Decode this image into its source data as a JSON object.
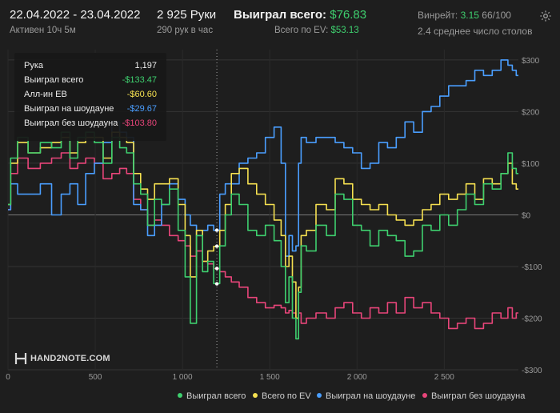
{
  "header": {
    "date_range": "22.04.2022 - 23.04.2022",
    "active_time": "Активен 10ч 5м",
    "hands": "2 925 Руки",
    "hands_per_hour": "290 рук в час",
    "won_total_label": "Выиграл всего:",
    "won_total_value": "$76.83",
    "ev_label": "Всего по EV:",
    "ev_value": "$53.13",
    "winrate_label": "Винрейт:",
    "winrate_value": "3.15",
    "winrate_unit": "66/100",
    "tables_avg": "2.4 среднее число столов",
    "settings_icon": "gear-icon"
  },
  "tooltip": {
    "rows": [
      {
        "label": "Рука",
        "value": "1,197",
        "color": "#ececec"
      },
      {
        "label": "Выиграл всего",
        "value": "-$133.47",
        "color": "#3ecf6e"
      },
      {
        "label": "Алл-ин ЕВ",
        "value": "-$60.60",
        "color": "#f5e050"
      },
      {
        "label": "Выиграл на шоудауне",
        "value": "-$29.67",
        "color": "#4a9eff"
      },
      {
        "label": "Выиграл без шоудауна",
        "value": "-$103.80",
        "color": "#e8457a"
      }
    ]
  },
  "logo": {
    "text": "HAND2NOTE.COM",
    "icon": "h2n-logo-icon"
  },
  "chart_data": {
    "type": "line",
    "x_ticks": [
      0,
      500,
      1000,
      1500,
      2000,
      2500
    ],
    "x_tick_labels": [
      "0",
      "500",
      "1 000",
      "1 500",
      "2 000",
      "2 500"
    ],
    "y_ticks": [
      300,
      200,
      100,
      0,
      -100,
      -200,
      -300
    ],
    "y_tick_labels": [
      "$300",
      "$200",
      "$100",
      "$0",
      "-$100",
      "-$200",
      "-$300"
    ],
    "xlim": [
      0,
      2925
    ],
    "ylim": [
      -300,
      320
    ],
    "grid": true,
    "legend_position": "bottom-right",
    "series": [
      {
        "name": "Выиграл всего",
        "color": "#3ecf6e",
        "x": [
          0,
          30,
          80,
          150,
          220,
          280,
          330,
          380,
          420,
          470,
          520,
          570,
          620,
          660,
          700,
          740,
          780,
          820,
          860,
          900,
          950,
          1000,
          1030,
          1060,
          1100,
          1130,
          1160,
          1197,
          1230,
          1260,
          1300,
          1350,
          1400,
          1450,
          1500,
          1550,
          1580,
          1600,
          1620,
          1640,
          1660,
          1670,
          1690,
          1730,
          1800,
          1850,
          1900,
          1950,
          2000,
          2050,
          2100,
          2150,
          2200,
          2250,
          2300,
          2350,
          2400,
          2450,
          2500,
          2550,
          2600,
          2650,
          2700,
          2750,
          2800,
          2850,
          2880,
          2900,
          2925
        ],
        "y": [
          20,
          110,
          150,
          120,
          140,
          130,
          160,
          110,
          150,
          160,
          140,
          100,
          150,
          130,
          120,
          60,
          40,
          -20,
          30,
          20,
          50,
          -30,
          -120,
          -210,
          -40,
          -110,
          -90,
          -133,
          -60,
          0,
          40,
          20,
          -30,
          -40,
          -20,
          -50,
          -100,
          -170,
          -120,
          -200,
          -240,
          -150,
          -60,
          -70,
          -20,
          -40,
          40,
          30,
          -20,
          -30,
          -60,
          -30,
          -40,
          -50,
          -80,
          -70,
          -20,
          -30,
          0,
          -20,
          10,
          40,
          20,
          60,
          50,
          80,
          120,
          90,
          80
        ]
      },
      {
        "name": "Всего по EV",
        "color": "#f5e050",
        "x": [
          0,
          30,
          80,
          150,
          220,
          280,
          330,
          380,
          420,
          470,
          520,
          570,
          620,
          660,
          700,
          740,
          780,
          820,
          860,
          900,
          950,
          1000,
          1030,
          1060,
          1100,
          1130,
          1160,
          1197,
          1230,
          1260,
          1300,
          1350,
          1400,
          1450,
          1500,
          1550,
          1580,
          1600,
          1620,
          1640,
          1660,
          1670,
          1690,
          1730,
          1800,
          1850,
          1900,
          1950,
          2000,
          2050,
          2100,
          2150,
          2200,
          2250,
          2300,
          2350,
          2400,
          2450,
          2500,
          2550,
          2600,
          2650,
          2700,
          2750,
          2800,
          2850,
          2880,
          2900,
          2925
        ],
        "y": [
          20,
          100,
          140,
          120,
          130,
          140,
          150,
          120,
          140,
          150,
          150,
          110,
          160,
          150,
          140,
          80,
          50,
          30,
          60,
          60,
          70,
          20,
          -40,
          -120,
          -30,
          -90,
          -70,
          -61,
          -30,
          20,
          80,
          90,
          60,
          40,
          20,
          -10,
          -40,
          -100,
          -80,
          -130,
          -200,
          -140,
          -40,
          -30,
          20,
          10,
          70,
          60,
          30,
          20,
          10,
          20,
          0,
          -10,
          -20,
          -10,
          10,
          20,
          40,
          30,
          40,
          60,
          30,
          70,
          60,
          80,
          100,
          60,
          50
        ]
      },
      {
        "name": "Выиграл на шоудауне",
        "color": "#4a9eff",
        "x": [
          0,
          30,
          80,
          150,
          220,
          280,
          330,
          380,
          420,
          470,
          520,
          570,
          620,
          660,
          700,
          740,
          780,
          820,
          860,
          900,
          950,
          1000,
          1030,
          1060,
          1100,
          1130,
          1160,
          1197,
          1230,
          1260,
          1300,
          1350,
          1400,
          1450,
          1500,
          1550,
          1580,
          1600,
          1620,
          1640,
          1660,
          1670,
          1690,
          1730,
          1800,
          1850,
          1900,
          1950,
          2000,
          2050,
          2100,
          2150,
          2200,
          2250,
          2300,
          2350,
          2400,
          2450,
          2500,
          2550,
          2600,
          2650,
          2700,
          2750,
          2800,
          2850,
          2880,
          2900,
          2925
        ],
        "y": [
          10,
          60,
          40,
          40,
          60,
          0,
          40,
          60,
          20,
          80,
          100,
          140,
          180,
          160,
          150,
          20,
          10,
          -40,
          -20,
          20,
          60,
          30,
          0,
          -20,
          -40,
          -30,
          -20,
          -30,
          40,
          60,
          60,
          100,
          110,
          120,
          150,
          170,
          100,
          -80,
          -40,
          -70,
          -60,
          100,
          150,
          140,
          150,
          150,
          140,
          130,
          120,
          90,
          100,
          140,
          130,
          150,
          180,
          160,
          200,
          210,
          230,
          250,
          250,
          260,
          280,
          270,
          280,
          300,
          290,
          280,
          270
        ]
      },
      {
        "name": "Выиграл без шоудауна",
        "color": "#e8457a",
        "x": [
          0,
          30,
          80,
          150,
          220,
          280,
          330,
          380,
          420,
          470,
          520,
          570,
          620,
          660,
          700,
          740,
          780,
          820,
          860,
          900,
          950,
          1000,
          1030,
          1060,
          1100,
          1130,
          1160,
          1197,
          1230,
          1260,
          1300,
          1350,
          1400,
          1450,
          1500,
          1550,
          1580,
          1600,
          1620,
          1640,
          1660,
          1670,
          1690,
          1730,
          1800,
          1850,
          1900,
          1950,
          2000,
          2050,
          2100,
          2150,
          2200,
          2250,
          2300,
          2350,
          2400,
          2450,
          2500,
          2550,
          2600,
          2650,
          2700,
          2750,
          2800,
          2850,
          2880,
          2900,
          2925
        ],
        "y": [
          10,
          80,
          110,
          90,
          100,
          110,
          120,
          90,
          100,
          110,
          100,
          70,
          80,
          90,
          80,
          30,
          10,
          -20,
          -10,
          -20,
          -40,
          -50,
          -60,
          -80,
          -70,
          -90,
          -95,
          -104,
          -110,
          -120,
          -130,
          -140,
          -160,
          -170,
          -180,
          -175,
          -180,
          -190,
          -185,
          -190,
          -200,
          -190,
          -210,
          -200,
          -190,
          -200,
          -180,
          -170,
          -190,
          -200,
          -180,
          -190,
          -170,
          -190,
          -160,
          -180,
          -170,
          -190,
          -200,
          -220,
          -210,
          -200,
          -220,
          -210,
          -190,
          -200,
          -180,
          -200,
          -190
        ]
      }
    ]
  }
}
